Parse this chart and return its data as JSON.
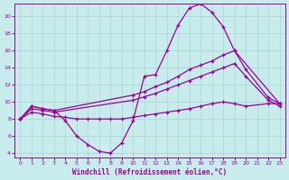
{
  "xlabel": "Windchill (Refroidissement éolien,°C)",
  "background_color": "#c8ecec",
  "grid_color": "#a8d4d4",
  "line_color": "#990099",
  "xlim": [
    -0.5,
    23.5
  ],
  "ylim": [
    3.5,
    21.5
  ],
  "yticks": [
    4,
    6,
    8,
    10,
    12,
    14,
    16,
    18,
    20
  ],
  "xticks": [
    0,
    1,
    2,
    3,
    4,
    5,
    6,
    7,
    8,
    9,
    10,
    11,
    12,
    13,
    14,
    15,
    16,
    17,
    18,
    19,
    20,
    21,
    22,
    23
  ],
  "curve1_x": [
    0,
    1,
    2,
    3,
    4,
    5,
    6,
    7,
    8,
    9,
    10,
    11,
    12,
    13,
    14,
    15,
    16,
    17,
    18,
    19,
    23
  ],
  "curve1_y": [
    8.0,
    9.5,
    9.2,
    9.0,
    7.8,
    6.0,
    5.0,
    4.2,
    4.0,
    5.2,
    7.8,
    13.0,
    13.2,
    16.0,
    19.0,
    21.0,
    21.5,
    20.5,
    18.8,
    16.0,
    9.8
  ],
  "line2_x": [
    0,
    1,
    2,
    3,
    10,
    11,
    12,
    13,
    14,
    15,
    16,
    17,
    18,
    19,
    20,
    22,
    23
  ],
  "line2_y": [
    8.0,
    9.5,
    9.2,
    9.0,
    10.8,
    11.2,
    11.8,
    12.3,
    13.0,
    13.8,
    14.3,
    14.8,
    15.5,
    16.0,
    13.8,
    10.5,
    9.8
  ],
  "line3_x": [
    0,
    1,
    2,
    3,
    10,
    11,
    12,
    13,
    14,
    15,
    16,
    17,
    18,
    19,
    20,
    22,
    23
  ],
  "line3_y": [
    8.0,
    9.2,
    9.0,
    8.8,
    10.2,
    10.6,
    11.0,
    11.5,
    12.0,
    12.5,
    13.0,
    13.5,
    14.0,
    14.5,
    13.0,
    10.2,
    9.5
  ],
  "line4_x": [
    0,
    1,
    2,
    3,
    4,
    5,
    6,
    7,
    8,
    9,
    10,
    11,
    12,
    13,
    14,
    15,
    16,
    17,
    18,
    19,
    20,
    22,
    23
  ],
  "line4_y": [
    8.0,
    8.8,
    8.6,
    8.3,
    8.2,
    8.0,
    8.0,
    8.0,
    8.0,
    8.0,
    8.2,
    8.4,
    8.6,
    8.8,
    9.0,
    9.2,
    9.5,
    9.8,
    10.0,
    9.8,
    9.5,
    9.8,
    9.8
  ]
}
